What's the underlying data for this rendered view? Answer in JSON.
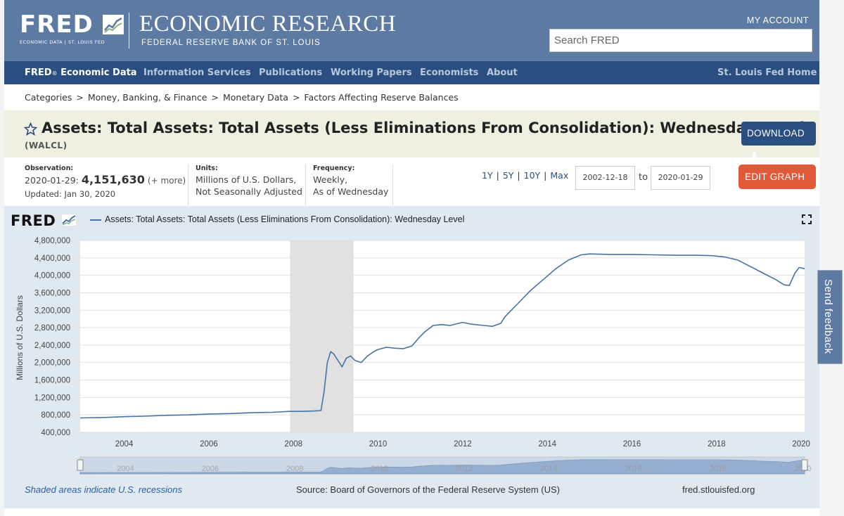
{
  "header": {
    "logo": "FRED",
    "logo_sub": "ECONOMIC DATA  |  ST. LOUIS FED",
    "title": "ECONOMIC RESEARCH",
    "subtitle": "FEDERAL RESERVE BANK OF ST. LOUIS",
    "my_account": "MY ACCOUNT",
    "search_placeholder": "Search FRED"
  },
  "nav": {
    "fred": "FRED",
    "fred_reg": "®",
    "fred_rest": " Economic Data",
    "items": [
      "Information Services",
      "Publications",
      "Working Papers",
      "Economists",
      "About"
    ],
    "right": "St. Louis Fed Home"
  },
  "breadcrumb": [
    "Categories",
    "Money, Banking, & Finance",
    "Monetary Data",
    "Factors Affecting Reserve Balances"
  ],
  "series": {
    "title": "Assets: Total Assets: Total Assets (Less Eliminations From Consolidation): Wednesday Level",
    "id": "(WALCL)",
    "download": "DOWNLOAD"
  },
  "meta": {
    "observation_label": "Observation:",
    "observation_date": "2020-01-29:",
    "observation_value": "4,151,630",
    "observation_more": "(+ more)",
    "updated": "Updated: Jan 30, 2020",
    "units_label": "Units:",
    "units_1": "Millions of U.S. Dollars,",
    "units_2": "Not Seasonally Adjusted",
    "frequency_label": "Frequency:",
    "frequency_1": "Weekly,",
    "frequency_2": "As of Wednesday",
    "ranges": [
      "1Y",
      "5Y",
      "10Y",
      "Max"
    ],
    "start_date": "2002-12-18",
    "to": "to",
    "end_date": "2020-01-29",
    "edit_graph": "EDIT GRAPH"
  },
  "chart": {
    "logo": "FRED",
    "legend": "Assets: Total Assets: Total Assets (Less Eliminations From Consolidation): Wednesday Level",
    "shaded_note": "Shaded areas indicate U.S. recessions",
    "source": "Source: Board of Governors of the Federal Reserve System (US)",
    "site": "fred.stlouisfed.org"
  },
  "feedback": "Send feedback",
  "colors": {
    "header": "#5d7aa3",
    "nav": "#2a4e7f",
    "line": "#4572a7",
    "edit": "#e05a3a"
  },
  "chart_data": {
    "type": "line",
    "title": "Assets: Total Assets: Total Assets (Less Eliminations From Consolidation): Wednesday Level",
    "xlabel": "",
    "ylabel": "Millions of U.S. Dollars",
    "xlim": [
      2002.96,
      2020.08
    ],
    "ylim": [
      400000,
      4800000
    ],
    "yticks": [
      400000,
      800000,
      1200000,
      1600000,
      2000000,
      2400000,
      2800000,
      3200000,
      3600000,
      4000000,
      4400000,
      4800000
    ],
    "ytick_labels": [
      "400,000",
      "800,000",
      "1,200,000",
      "1,600,000",
      "2,000,000",
      "2,400,000",
      "2,800,000",
      "3,200,000",
      "3,600,000",
      "4,000,000",
      "4,400,000",
      "4,800,000"
    ],
    "xticks": [
      2004,
      2006,
      2008,
      2010,
      2012,
      2014,
      2016,
      2018,
      2020
    ],
    "xtick_labels": [
      "2004",
      "2006",
      "2008",
      "2010",
      "2012",
      "2014",
      "2016",
      "2018",
      "2020"
    ],
    "recessions": [
      [
        2007.92,
        2009.42
      ]
    ],
    "series": [
      {
        "name": "WALCL",
        "x": [
          2002.96,
          2003.5,
          2004.0,
          2004.5,
          2005.0,
          2005.5,
          2006.0,
          2006.5,
          2007.0,
          2007.5,
          2007.9,
          2008.2,
          2008.5,
          2008.65,
          2008.72,
          2008.8,
          2008.88,
          2008.95,
          2009.05,
          2009.15,
          2009.25,
          2009.35,
          2009.45,
          2009.6,
          2009.75,
          2009.9,
          2010.0,
          2010.2,
          2010.4,
          2010.6,
          2010.8,
          2010.95,
          2011.1,
          2011.3,
          2011.5,
          2011.7,
          2011.9,
          2012.0,
          2012.2,
          2012.5,
          2012.7,
          2012.9,
          2013.0,
          2013.3,
          2013.6,
          2013.9,
          2014.2,
          2014.5,
          2014.8,
          2015.0,
          2015.5,
          2016.0,
          2016.5,
          2017.0,
          2017.5,
          2017.9,
          2018.2,
          2018.5,
          2018.8,
          2019.1,
          2019.4,
          2019.6,
          2019.72,
          2019.85,
          2019.95,
          2020.08
        ],
        "values": [
          730000,
          740000,
          760000,
          770000,
          790000,
          800000,
          820000,
          830000,
          850000,
          860000,
          880000,
          880000,
          890000,
          900000,
          1300000,
          2000000,
          2250000,
          2200000,
          2050000,
          1900000,
          2100000,
          2150000,
          2050000,
          2000000,
          2150000,
          2250000,
          2300000,
          2350000,
          2330000,
          2320000,
          2380000,
          2550000,
          2700000,
          2850000,
          2870000,
          2850000,
          2900000,
          2920000,
          2880000,
          2850000,
          2830000,
          2900000,
          3050000,
          3350000,
          3650000,
          3900000,
          4150000,
          4350000,
          4470000,
          4490000,
          4480000,
          4480000,
          4470000,
          4460000,
          4460000,
          4450000,
          4420000,
          4350000,
          4200000,
          4050000,
          3900000,
          3780000,
          3770000,
          4050000,
          4180000,
          4152000
        ]
      }
    ]
  }
}
